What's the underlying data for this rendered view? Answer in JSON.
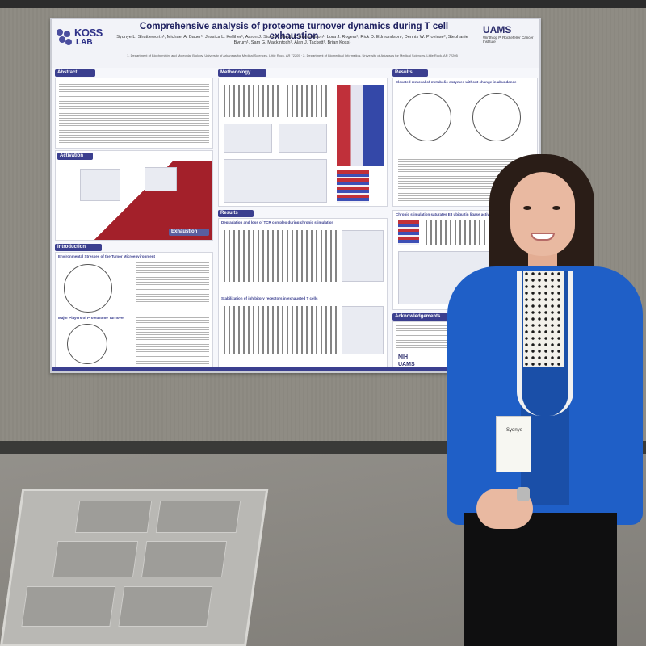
{
  "poster": {
    "title": "Comprehensive analysis of proteome turnover dynamics during T cell exhaustion",
    "authors": "Sydnye L. Shuttleworth¹, Michael A. Bauer¹, Jessica L. Kelliher¹, Aaron J. Storey¹, Jacob L. Edmondson¹, Lora J. Rogers¹, Rick D. Edmondson¹, Dennis W. Provinse², Stephanie Byrum¹, Sam G. Mackintosh¹, Alan J. Tackett¹, Brian Koss¹",
    "affiliations": "1. Department of Biochemistry and Molecular Biology, University of Arkansas for Medical Sciences, Little Rock, AR 72205 · 2. Department of Biomedical Informatics, University of Arkansas for Medical Sciences, Little Rock, AR 72205",
    "lab_logo": {
      "name": "KOSS",
      "sub": "LAB"
    },
    "institution_logo": {
      "name": "UAMS",
      "sub": "Winthrop P. Rockefeller Cancer Institute"
    },
    "sections": {
      "abstract": "Abstract",
      "methodology": "Methodology",
      "results": "Results",
      "results_sub1": "Elevated removal of metabolic enzymes without change in abundance",
      "results_sub2": "Chronic stimulation saturates E3 ubiquitin ligase activation",
      "results_sub3": "Results",
      "results_sub4": "Degradation and loss of TCR complex during chronic stimulation",
      "results_sub5": "Stabilization of inhibitory receptors in exhausted T cells",
      "introduction": "Introduction",
      "intro_sub1": "Environmental Stresses of the Tumor Microenvironment",
      "intro_sub2": "Major Players of Proteasome Turnover",
      "activation": "Activation",
      "exhaustion": "Exhaustion",
      "acknowledgements": "Acknowledgements"
    },
    "footer": {
      "nih": "NIH",
      "uams": "UAMS"
    }
  },
  "person": {
    "badge_name": "Sydnye"
  },
  "colors": {
    "poster_accent": "#3b3f8f",
    "blazer": "#1f5fc7",
    "heatmap_red": "#c0303a",
    "heatmap_blue": "#3448a8"
  }
}
